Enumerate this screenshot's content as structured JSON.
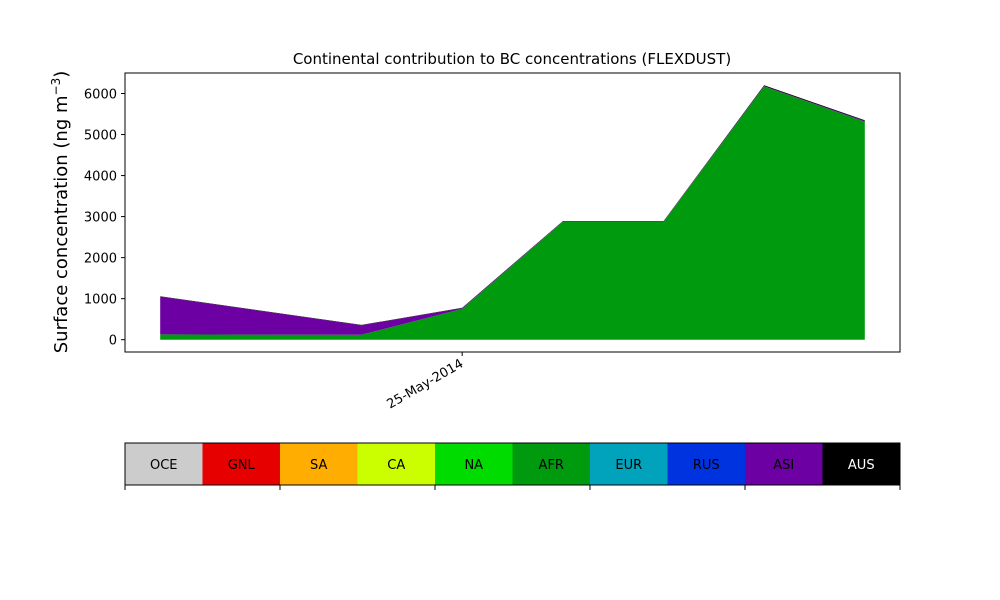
{
  "chart_data": [
    {
      "type": "area",
      "stacked": true,
      "title": "Continental contribution to BC concentrations (FLEXDUST)",
      "ylabel_main": "Surface concentration (ng m",
      "ylabel_sup": "−3",
      "ylabel_close": ")",
      "xlabel": "",
      "ylim": [
        -300,
        6500
      ],
      "y_ticks": [
        0,
        1000,
        2000,
        3000,
        4000,
        5000,
        6000
      ],
      "x_tick_labels": [
        "25-May-2014"
      ],
      "grid": false,
      "x_positions": [
        0,
        2,
        3,
        4,
        5,
        6,
        7
      ],
      "series": [
        {
          "name": "AFR",
          "color": "#009a0e",
          "values": [
            130,
            120,
            750,
            2870,
            2870,
            6170,
            5310
          ]
        },
        {
          "name": "ASI",
          "color": "#6c00a2",
          "values": [
            920,
            230,
            20,
            10,
            10,
            10,
            20
          ]
        },
        {
          "name": "AUS",
          "color": "#000000",
          "values": [
            10,
            10,
            10,
            10,
            10,
            20,
            20
          ]
        }
      ]
    },
    {
      "type": "legend-colorbar",
      "categories": [
        "OCE",
        "GNL",
        "SA",
        "CA",
        "NA",
        "AFR",
        "EUR",
        "RUS",
        "ASI",
        "AUS"
      ],
      "colors": [
        "#cccccc",
        "#e60000",
        "#ffad00",
        "#cbff00",
        "#00dc00",
        "#009a0e",
        "#00a3bb",
        "#0033e0",
        "#6c00a2",
        "#000000"
      ],
      "text_colors": [
        "#000000",
        "#000000",
        "#000000",
        "#000000",
        "#000000",
        "#000000",
        "#000000",
        "#000000",
        "#000000",
        "#ffffff"
      ]
    }
  ]
}
